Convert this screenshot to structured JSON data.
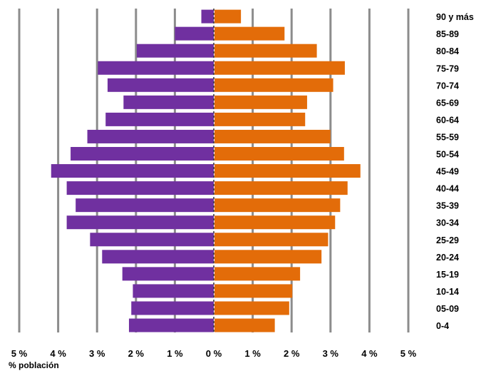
{
  "chart_data": {
    "type": "bar",
    "orientation": "horizontal",
    "xlabel": "% población",
    "x_ticks": [
      "5 %",
      "4 %",
      "3 %",
      "2 %",
      "1 %",
      "0 %",
      "1 %",
      "2 %",
      "3 %",
      "4 %",
      "5 %"
    ],
    "xlim": [
      -5,
      5
    ],
    "grid": true,
    "categories": [
      "0-4",
      "05-09",
      "10-14",
      "15-19",
      "20-24",
      "25-29",
      "30-34",
      "35-39",
      "40-44",
      "45-49",
      "50-54",
      "55-59",
      "60-64",
      "65-69",
      "70-74",
      "75-79",
      "80-84",
      "85-89",
      "90 y más"
    ],
    "series": [
      {
        "color": "#7030a0",
        "values": [
          2.18,
          2.12,
          2.08,
          2.35,
          2.87,
          3.18,
          3.78,
          3.55,
          3.78,
          4.18,
          3.68,
          3.25,
          2.78,
          2.32,
          2.73,
          2.98,
          1.98,
          1.0,
          0.32
        ]
      },
      {
        "color": "#e36c09",
        "values": [
          1.55,
          1.92,
          2.0,
          2.2,
          2.75,
          2.92,
          3.1,
          3.23,
          3.42,
          3.75,
          3.33,
          2.98,
          2.33,
          2.38,
          3.05,
          3.35,
          2.63,
          1.8,
          0.68
        ]
      }
    ]
  }
}
